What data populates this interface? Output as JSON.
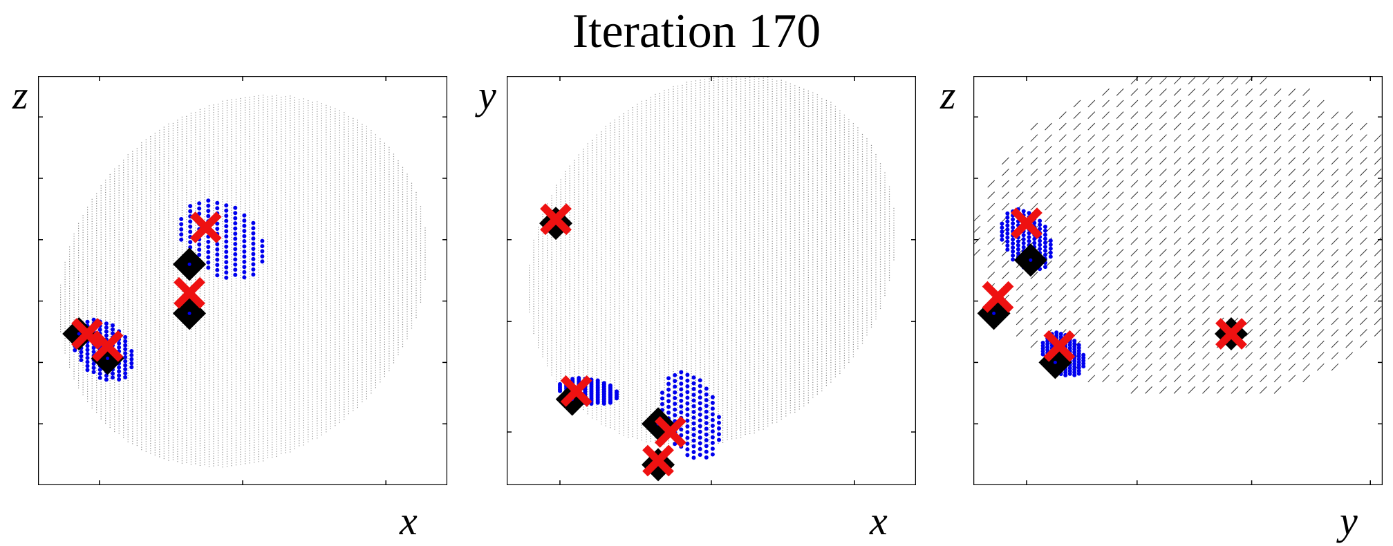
{
  "title": "Iteration 170",
  "colors": {
    "cloud": "#8a8a8a",
    "particles": "#0000ee",
    "estimate_marker": "#000000",
    "truth_marker": "#ee1111"
  },
  "chart_data": [
    {
      "type": "scatter",
      "panel": "x-z projection",
      "xlabel": "x",
      "ylabel": "z",
      "xlim": [
        0,
        1
      ],
      "ylim": [
        0,
        1
      ],
      "xticks": [
        0.15,
        0.5,
        0.85
      ],
      "yticks": [
        0.15,
        0.3,
        0.45,
        0.6,
        0.75,
        0.9
      ],
      "background_cloud": {
        "shape": "disc",
        "center": [
          0.5,
          0.5
        ],
        "radius": 0.45
      },
      "particle_clusters": [
        {
          "center": [
            0.45,
            0.6
          ],
          "spread": [
            0.1,
            0.09
          ]
        },
        {
          "center": [
            0.16,
            0.33
          ],
          "spread": [
            0.07,
            0.07
          ]
        }
      ],
      "diamonds": [
        [
          0.37,
          0.54
        ],
        [
          0.37,
          0.42
        ],
        [
          0.1,
          0.37
        ],
        [
          0.17,
          0.31
        ]
      ],
      "crosses": [
        [
          0.41,
          0.63
        ],
        [
          0.37,
          0.47
        ],
        [
          0.12,
          0.37
        ],
        [
          0.17,
          0.34
        ]
      ]
    },
    {
      "type": "scatter",
      "panel": "x-y projection",
      "xlabel": "x",
      "ylabel": "y",
      "xlim": [
        0,
        1
      ],
      "ylim": [
        0,
        1
      ],
      "xticks": [
        0.13,
        0.5,
        0.85
      ],
      "yticks": [
        0.6,
        0.4,
        0.13
      ],
      "background_cloud": {
        "shape": "disc",
        "center": [
          0.5,
          0.55
        ],
        "radius": 0.45
      },
      "particle_clusters": [
        {
          "center": [
            0.45,
            0.17
          ],
          "spread": [
            0.07,
            0.1
          ]
        },
        {
          "center": [
            0.2,
            0.23
          ],
          "spread": [
            0.07,
            0.03
          ]
        }
      ],
      "diamonds": [
        [
          0.12,
          0.64
        ],
        [
          0.16,
          0.21
        ],
        [
          0.37,
          0.15
        ],
        [
          0.37,
          0.05
        ]
      ],
      "crosses": [
        [
          0.12,
          0.65
        ],
        [
          0.17,
          0.23
        ],
        [
          0.4,
          0.13
        ],
        [
          0.37,
          0.06
        ]
      ]
    },
    {
      "type": "scatter",
      "panel": "y-z projection",
      "xlabel": "y",
      "ylabel": "z",
      "xlim": [
        0,
        1
      ],
      "ylim": [
        0,
        1
      ],
      "xticks": [
        0.13,
        0.4,
        0.68,
        0.97
      ],
      "yticks": [
        0.15,
        0.3,
        0.45,
        0.6,
        0.75,
        0.9
      ],
      "background_cloud": {
        "shape": "tilted-ellipse",
        "center": [
          0.55,
          0.6
        ],
        "radius": [
          0.5,
          0.36
        ]
      },
      "particle_clusters": [
        {
          "center": [
            0.13,
            0.6
          ],
          "spread": [
            0.06,
            0.07
          ]
        },
        {
          "center": [
            0.22,
            0.32
          ],
          "spread": [
            0.05,
            0.05
          ]
        }
      ],
      "diamonds": [
        [
          0.05,
          0.42
        ],
        [
          0.14,
          0.55
        ],
        [
          0.2,
          0.3
        ],
        [
          0.63,
          0.37
        ]
      ],
      "crosses": [
        [
          0.06,
          0.46
        ],
        [
          0.13,
          0.64
        ],
        [
          0.21,
          0.34
        ],
        [
          0.63,
          0.37
        ]
      ]
    }
  ]
}
